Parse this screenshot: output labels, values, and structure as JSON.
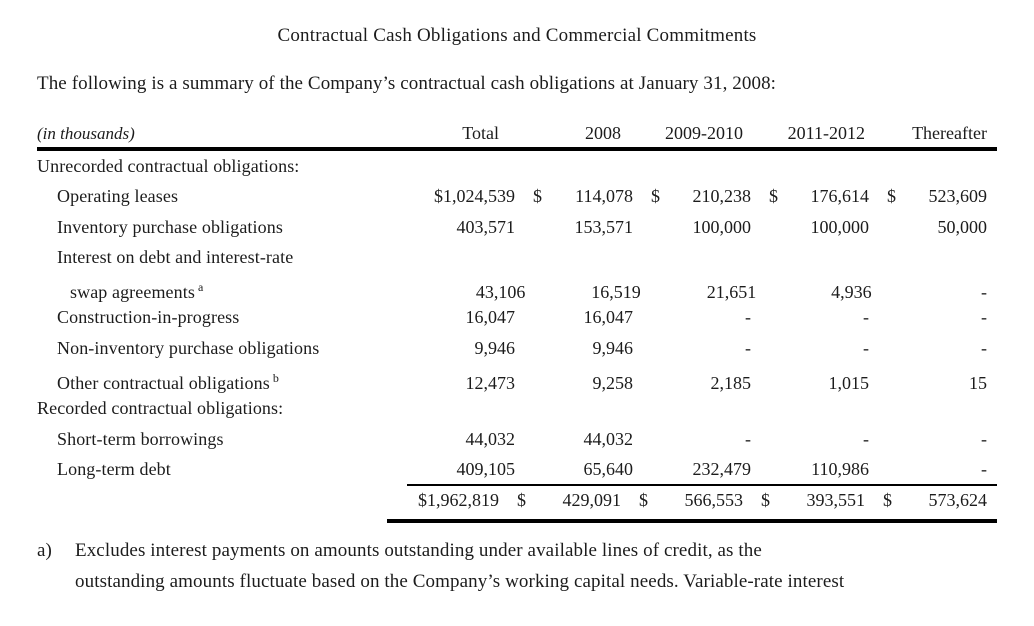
{
  "page": {
    "title": "Contractual Cash Obligations and Commercial Commitments",
    "intro": "The following is a summary of the Company’s contractual cash obligations at January 31, 2008:"
  },
  "table": {
    "units_label": "(in thousands)",
    "columns": [
      "Total",
      "2008",
      "2009-2010",
      "2011-2012",
      "Thereafter"
    ],
    "rows": [
      {
        "kind": "section",
        "label": "Unrecorded contractual obligations:"
      },
      {
        "kind": "data",
        "label": "Operating leases",
        "cells": [
          {
            "d": "",
            "v": "$1,024,539"
          },
          {
            "d": "$",
            "v": "114,078"
          },
          {
            "d": "$",
            "v": "210,238"
          },
          {
            "d": "$",
            "v": "176,614"
          },
          {
            "d": "$",
            "v": "523,609"
          }
        ]
      },
      {
        "kind": "data",
        "label": "Inventory purchase obligations",
        "cells": [
          {
            "d": "",
            "v": "403,571"
          },
          {
            "d": "",
            "v": "153,571"
          },
          {
            "d": "",
            "v": "100,000"
          },
          {
            "d": "",
            "v": "100,000"
          },
          {
            "d": "",
            "v": "50,000"
          }
        ]
      },
      {
        "kind": "label-only",
        "label": "Interest on debt and interest-rate"
      },
      {
        "kind": "data",
        "label": "swap agreements",
        "sup": "a",
        "cells": [
          {
            "d": "",
            "v": "43,106"
          },
          {
            "d": "",
            "v": "16,519"
          },
          {
            "d": "",
            "v": "21,651"
          },
          {
            "d": "",
            "v": "4,936"
          },
          {
            "d": "",
            "v": "-"
          }
        ]
      },
      {
        "kind": "data",
        "label": "Construction-in-progress",
        "cells": [
          {
            "d": "",
            "v": "16,047"
          },
          {
            "d": "",
            "v": "16,047"
          },
          {
            "d": "",
            "v": "-"
          },
          {
            "d": "",
            "v": "-"
          },
          {
            "d": "",
            "v": "-"
          }
        ]
      },
      {
        "kind": "data",
        "label": "Non-inventory purchase obligations",
        "cells": [
          {
            "d": "",
            "v": "9,946"
          },
          {
            "d": "",
            "v": "9,946"
          },
          {
            "d": "",
            "v": "-"
          },
          {
            "d": "",
            "v": "-"
          },
          {
            "d": "",
            "v": "-"
          }
        ]
      },
      {
        "kind": "data",
        "label": "Other contractual obligations",
        "sup": "b",
        "cells": [
          {
            "d": "",
            "v": "12,473"
          },
          {
            "d": "",
            "v": "9,258"
          },
          {
            "d": "",
            "v": "2,185"
          },
          {
            "d": "",
            "v": "1,015"
          },
          {
            "d": "",
            "v": "15"
          }
        ]
      },
      {
        "kind": "section",
        "label": "Recorded contractual obligations:"
      },
      {
        "kind": "data",
        "label": "Short-term borrowings",
        "cells": [
          {
            "d": "",
            "v": "44,032"
          },
          {
            "d": "",
            "v": "44,032"
          },
          {
            "d": "",
            "v": "-"
          },
          {
            "d": "",
            "v": "-"
          },
          {
            "d": "",
            "v": "-"
          }
        ]
      },
      {
        "kind": "data",
        "label": "Long-term debt",
        "cells": [
          {
            "d": "",
            "v": "409,105"
          },
          {
            "d": "",
            "v": "65,640"
          },
          {
            "d": "",
            "v": "232,479"
          },
          {
            "d": "",
            "v": "110,986"
          },
          {
            "d": "",
            "v": "-"
          }
        ]
      },
      {
        "kind": "total",
        "label": "",
        "cells": [
          {
            "d": "",
            "v": "$1,962,819"
          },
          {
            "d": "$",
            "v": "429,091"
          },
          {
            "d": "$",
            "v": "566,553"
          },
          {
            "d": "$",
            "v": "393,551"
          },
          {
            "d": "$",
            "v": "573,624"
          }
        ]
      }
    ]
  },
  "footnotes": [
    {
      "marker": "a)",
      "line1": "Excludes interest payments on amounts outstanding under available lines of credit, as the",
      "line2": "outstanding amounts fluctuate based on the Company’s working capital needs. Variable-rate interest"
    }
  ],
  "colors": {
    "text": "#1c1c1c",
    "rule": "#000000",
    "background": "#ffffff"
  }
}
